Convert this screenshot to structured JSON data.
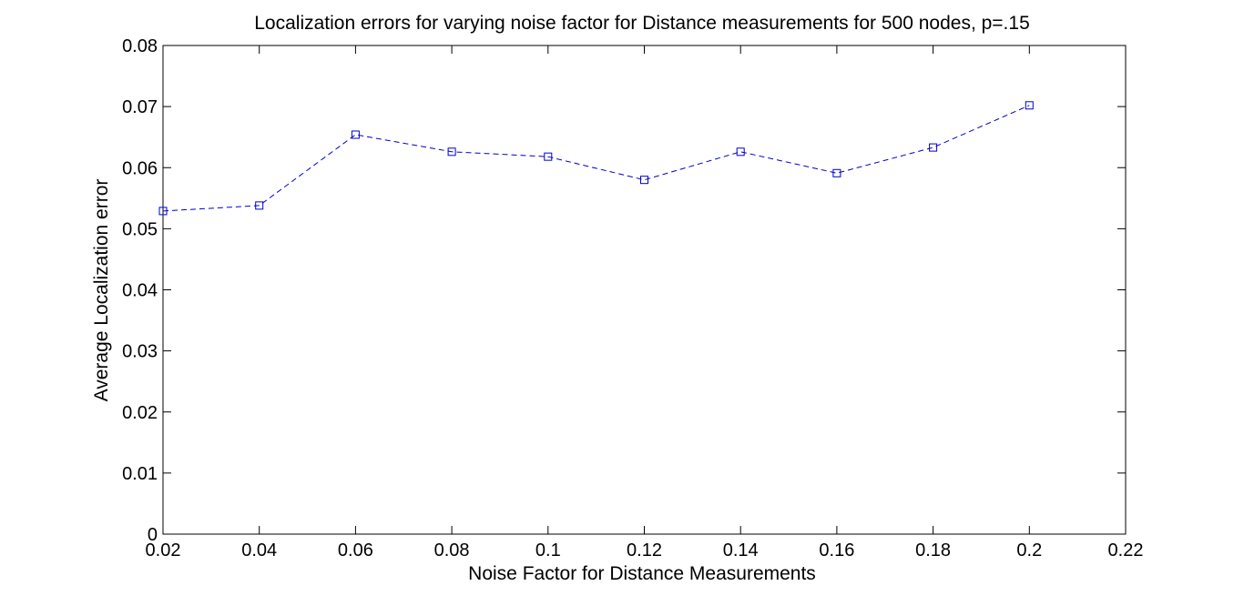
{
  "chart_data": {
    "type": "line",
    "title": "Localization errors for varying noise factor for Distance measurements for 500 nodes, p=.15",
    "xlabel": "Noise Factor for Distance Measurements",
    "ylabel": "Average Localization error",
    "xlim": [
      0.02,
      0.22
    ],
    "ylim": [
      0,
      0.08
    ],
    "x_ticks": [
      "0.02",
      "0.04",
      "0.06",
      "0.08",
      "0.1",
      "0.12",
      "0.14",
      "0.16",
      "0.18",
      "0.2",
      "0.22"
    ],
    "y_ticks": [
      "0",
      "0.01",
      "0.02",
      "0.03",
      "0.04",
      "0.05",
      "0.06",
      "0.07",
      "0.08"
    ],
    "grid": false,
    "series": [
      {
        "x": [
          0.02,
          0.04,
          0.06,
          0.08,
          0.1,
          0.12,
          0.14,
          0.16,
          0.18,
          0.2
        ],
        "values": [
          0.0529,
          0.0538,
          0.0654,
          0.0626,
          0.0618,
          0.058,
          0.0626,
          0.0591,
          0.0633,
          0.0702
        ],
        "color": "#0000cc",
        "line_style": "dashed",
        "marker": "square"
      }
    ]
  }
}
